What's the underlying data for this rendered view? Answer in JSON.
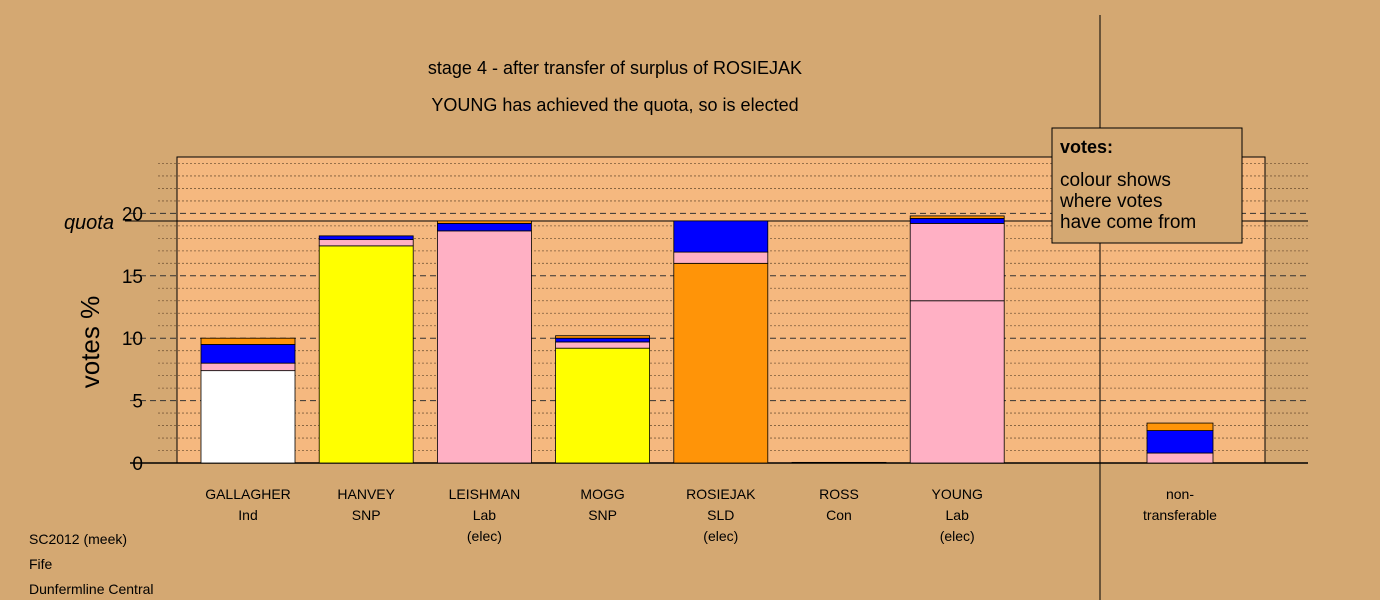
{
  "chart_data": {
    "type": "bar",
    "stacked": true,
    "title": "stage 4 - after transfer of surplus of ROSIEJAK",
    "subtitle": "YOUNG has achieved the quota, so is elected",
    "ylabel": "votes %",
    "ylim": [
      0,
      24.5
    ],
    "yticks": [
      0,
      5,
      10,
      15,
      20
    ],
    "quota": 19.4,
    "quota_label": "quota",
    "grid": "dashed horizontal",
    "legend": {
      "title": "votes:",
      "lines": [
        "colour shows",
        "where votes",
        "have come from"
      ],
      "placement": "top-right"
    },
    "colors": {
      "white": "#ffffff",
      "yellow": "#ffff00",
      "pink": "#ffb0c4",
      "orange": "#ff9408",
      "blue": "#0000ff",
      "background": "#d4a872",
      "plot_background": "#f5b87f"
    },
    "categories": [
      {
        "name": "GALLAGHER",
        "party": "Ind",
        "note": "",
        "segments": [
          {
            "from": "white",
            "value": 7.4
          },
          {
            "from": "pink",
            "value": 0.6
          },
          {
            "from": "blue",
            "value": 1.5
          },
          {
            "from": "orange",
            "value": 0.5
          }
        ]
      },
      {
        "name": "HANVEY",
        "party": "SNP",
        "note": "",
        "segments": [
          {
            "from": "yellow",
            "value": 17.4
          },
          {
            "from": "pink",
            "value": 0.5
          },
          {
            "from": "blue",
            "value": 0.3
          }
        ]
      },
      {
        "name": "LEISHMAN",
        "party": "Lab",
        "note": "(elec)",
        "segments": [
          {
            "from": "pink",
            "value": 18.6
          },
          {
            "from": "blue",
            "value": 0.6
          },
          {
            "from": "orange",
            "value": 0.2
          }
        ]
      },
      {
        "name": "MOGG",
        "party": "SNP",
        "note": "",
        "segments": [
          {
            "from": "yellow",
            "value": 9.2
          },
          {
            "from": "pink",
            "value": 0.5
          },
          {
            "from": "blue",
            "value": 0.3
          },
          {
            "from": "orange",
            "value": 0.2
          }
        ]
      },
      {
        "name": "ROSIEJAK",
        "party": "SLD",
        "note": "(elec)",
        "segments": [
          {
            "from": "orange",
            "value": 16.0
          },
          {
            "from": "pink",
            "value": 0.9
          },
          {
            "from": "blue",
            "value": 2.5
          }
        ]
      },
      {
        "name": "ROSS",
        "party": "Con",
        "note": "",
        "segments": [
          {
            "from": "blue",
            "value": 0.05
          }
        ]
      },
      {
        "name": "YOUNG",
        "party": "Lab",
        "note": "(elec)",
        "segments": [
          {
            "from": "pink",
            "value": 13.0
          },
          {
            "from": "pink",
            "value": 6.2
          },
          {
            "from": "blue",
            "value": 0.4
          },
          {
            "from": "orange",
            "value": 0.2
          }
        ]
      }
    ],
    "nontransferable": {
      "label_line1": "non-",
      "label_line2": "transferable",
      "segments": [
        {
          "from": "pink",
          "value": 0.8
        },
        {
          "from": "blue",
          "value": 1.8
        },
        {
          "from": "orange",
          "value": 0.6
        }
      ]
    }
  },
  "footer": {
    "line1": "SC2012 (meek)",
    "line2": "Fife",
    "line3": "Dunfermline Central"
  }
}
